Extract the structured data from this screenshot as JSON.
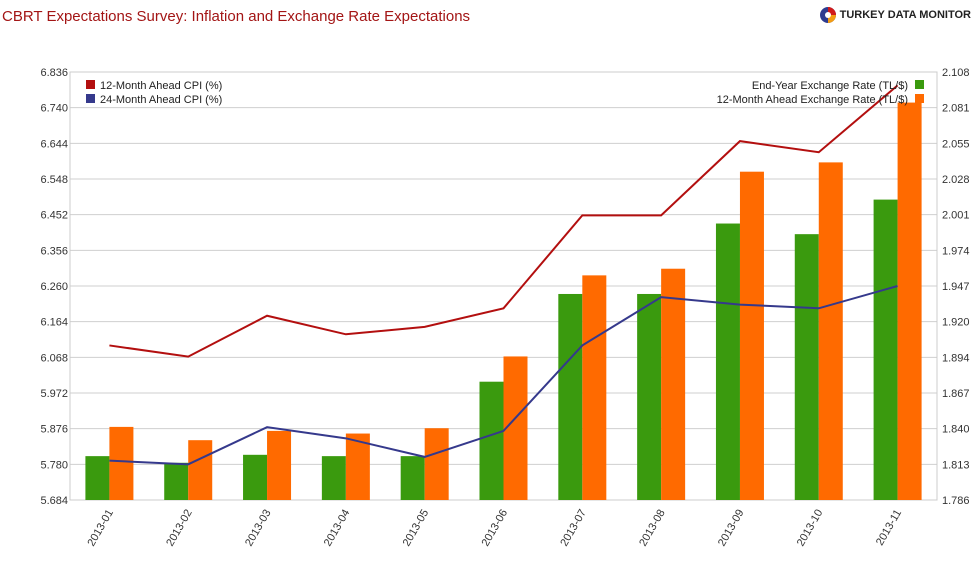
{
  "chart_title": "CBRT Expectations Survey: Inflation and Exchange Rate Expectations",
  "brand": {
    "text": "TURKEY DATA MONITOR",
    "icon": "globe-logo-icon"
  },
  "chart_data": {
    "type": "bar",
    "title": "CBRT Expectations Survey: Inflation and Exchange Rate Expectations",
    "categories": [
      "2013-01",
      "2013-02",
      "2013-03",
      "2013-04",
      "2013-05",
      "2013-06",
      "2013-07",
      "2013-08",
      "2013-09",
      "2013-10",
      "2013-11"
    ],
    "left_axis": {
      "ylim": [
        5.684,
        6.836
      ],
      "ticks": [
        "5.684",
        "5.780",
        "5.876",
        "5.972",
        "6.068",
        "6.164",
        "6.260",
        "6.356",
        "6.452",
        "6.548",
        "6.644",
        "6.740",
        "6.836"
      ]
    },
    "right_axis": {
      "ylim": [
        1.786,
        2.108
      ],
      "ticks": [
        "1.786",
        "1.813",
        "1.840",
        "1.867",
        "1.894",
        "1.920",
        "1.947",
        "1.974",
        "2.001",
        "2.028",
        "2.055",
        "2.081",
        "2.108"
      ]
    },
    "line_series": [
      {
        "name": "12-Month Ahead CPI (%)",
        "color": "#b30f0f",
        "axis": "left",
        "values": [
          6.1,
          6.07,
          6.18,
          6.13,
          6.15,
          6.2,
          6.45,
          6.45,
          6.65,
          6.62,
          6.8
        ]
      },
      {
        "name": "24-Month Ahead CPI (%)",
        "color": "#35398c",
        "axis": "left",
        "values": [
          5.79,
          5.78,
          5.88,
          5.85,
          5.8,
          5.87,
          6.1,
          6.23,
          6.21,
          6.2,
          6.26
        ]
      }
    ],
    "bar_series": [
      {
        "name": "End-Year Exchange Rate (TL/$)",
        "color": "#3a9a0e",
        "axis": "right",
        "values": [
          1.819,
          1.814,
          1.82,
          1.819,
          1.819,
          1.875,
          1.941,
          1.941,
          1.994,
          1.986,
          2.012
        ]
      },
      {
        "name": "12-Month Ahead Exchange Rate (TL/$)",
        "color": "#ff6a00",
        "axis": "right",
        "values": [
          1.841,
          1.831,
          1.838,
          1.836,
          1.84,
          1.894,
          1.955,
          1.96,
          2.033,
          2.04,
          2.085
        ]
      }
    ],
    "grid": true,
    "legend_left": "top-left",
    "legend_right": "top-right"
  }
}
